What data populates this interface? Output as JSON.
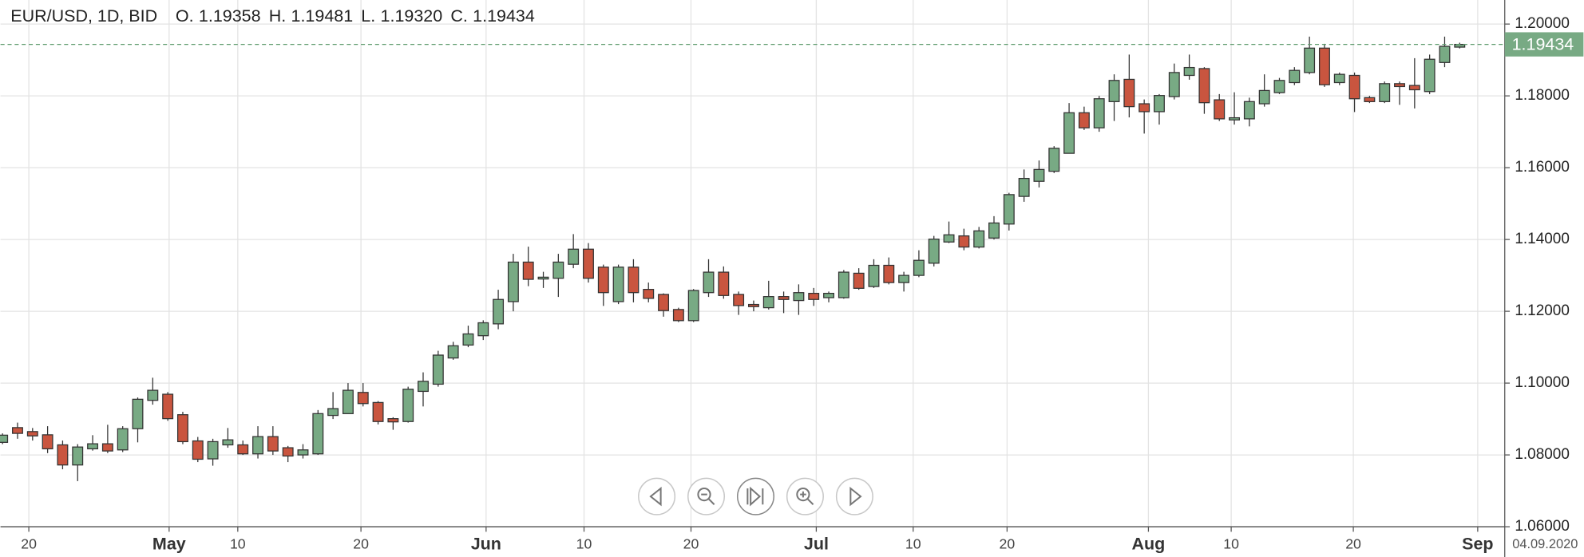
{
  "chart_data": {
    "type": "candlestick",
    "title": "EUR/USD, 1D, BID",
    "header": [
      {
        "label": "O.",
        "text": "1.19358"
      },
      {
        "label": "H.",
        "text": "1.19481"
      },
      {
        "label": "L.",
        "text": "1.19320"
      },
      {
        "label": "C.",
        "text": "1.19434"
      }
    ],
    "open": [
      1.0835,
      1.0876,
      1.0865,
      1.0856,
      1.0828,
      1.0772,
      1.0817,
      1.0831,
      1.0814,
      1.0873,
      1.0952,
      1.0969,
      1.0912,
      1.0839,
      1.0789,
      1.0828,
      1.0828,
      1.0803,
      1.0851,
      1.082,
      1.08,
      1.0803,
      1.091,
      1.0915,
      1.0974,
      1.0946,
      1.0901,
      1.0893,
      1.0977,
      1.0997,
      1.107,
      1.1106,
      1.1132,
      1.1165,
      1.1227,
      1.1337,
      1.129,
      1.1292,
      1.1331,
      1.1373,
      1.1323,
      1.1227,
      1.1323,
      1.1261,
      1.1247,
      1.1205,
      1.1174,
      1.1252,
      1.1309,
      1.1247,
      1.1219,
      1.121,
      1.1241,
      1.123,
      1.125,
      1.1238,
      1.1238,
      1.1306,
      1.1269,
      1.1328,
      1.128,
      1.13,
      1.1334,
      1.1393,
      1.141,
      1.1379,
      1.1404,
      1.1443,
      1.152,
      1.1562,
      1.159,
      1.164,
      1.1753,
      1.1711,
      1.1784,
      1.1846,
      1.1778,
      1.1756,
      1.1798,
      1.1857,
      1.1876,
      1.1789,
      1.1733,
      1.1736,
      1.1778,
      1.1809,
      1.1837,
      1.1865,
      1.1933,
      1.1837,
      1.1857,
      1.1795,
      1.1784,
      1.1834,
      1.1829,
      1.1812,
      1.1893,
      1.19358
    ],
    "high": [
      1.086,
      1.089,
      1.0875,
      1.088,
      1.084,
      1.083,
      1.0855,
      1.0884,
      1.088,
      1.096,
      1.1015,
      1.0975,
      1.092,
      1.085,
      1.0845,
      1.0875,
      1.084,
      1.088,
      1.088,
      1.0825,
      1.083,
      1.0925,
      1.0975,
      1.1,
      1.1,
      1.095,
      1.0905,
      1.099,
      1.103,
      1.109,
      1.1115,
      1.116,
      1.1175,
      1.126,
      1.136,
      1.138,
      1.131,
      1.136,
      1.1415,
      1.139,
      1.133,
      1.133,
      1.1345,
      1.128,
      1.125,
      1.121,
      1.1262,
      1.1345,
      1.1325,
      1.1255,
      1.123,
      1.1285,
      1.1255,
      1.1275,
      1.1265,
      1.1255,
      1.1315,
      1.132,
      1.1345,
      1.135,
      1.131,
      1.137,
      1.141,
      1.145,
      1.143,
      1.1435,
      1.1465,
      1.153,
      1.1595,
      1.162,
      1.166,
      1.178,
      1.177,
      1.18,
      1.186,
      1.1915,
      1.179,
      1.1805,
      1.189,
      1.1915,
      1.188,
      1.1805,
      1.181,
      1.1795,
      1.186,
      1.185,
      1.188,
      1.1965,
      1.1945,
      1.1865,
      1.1865,
      1.18,
      1.184,
      1.184,
      1.1905,
      1.1915,
      1.1965,
      1.19481
    ],
    "low": [
      1.083,
      1.0845,
      1.084,
      1.0805,
      1.076,
      1.0727,
      1.0812,
      1.0805,
      1.0808,
      1.0835,
      1.094,
      1.0895,
      1.083,
      1.078,
      1.077,
      1.082,
      1.08,
      1.079,
      1.08,
      1.078,
      1.079,
      1.08,
      1.09,
      1.0915,
      1.0935,
      1.0885,
      1.087,
      1.089,
      1.0935,
      1.099,
      1.1065,
      1.11,
      1.112,
      1.115,
      1.12,
      1.127,
      1.1265,
      1.124,
      1.132,
      1.128,
      1.1215,
      1.122,
      1.1225,
      1.1225,
      1.1185,
      1.117,
      1.117,
      1.124,
      1.1235,
      1.119,
      1.12,
      1.1205,
      1.1195,
      1.119,
      1.1215,
      1.1225,
      1.1235,
      1.126,
      1.1265,
      1.1275,
      1.1255,
      1.1295,
      1.1325,
      1.139,
      1.137,
      1.1375,
      1.14,
      1.1425,
      1.1505,
      1.1545,
      1.1585,
      1.164,
      1.1705,
      1.17,
      1.173,
      1.174,
      1.1695,
      1.172,
      1.179,
      1.1845,
      1.175,
      1.173,
      1.172,
      1.1715,
      1.177,
      1.1805,
      1.183,
      1.186,
      1.1825,
      1.183,
      1.1755,
      1.178,
      1.178,
      1.1775,
      1.1765,
      1.1805,
      1.188,
      1.1932
    ],
    "close": [
      1.0855,
      1.086,
      1.0853,
      1.0817,
      1.0772,
      1.0822,
      1.0831,
      1.0811,
      1.0873,
      1.0955,
      1.098,
      1.0901,
      1.0837,
      1.0788,
      1.0837,
      1.0842,
      1.0803,
      1.0851,
      1.0811,
      1.0797,
      1.0814,
      1.0915,
      1.0929,
      1.098,
      1.0943,
      1.0893,
      1.0892,
      1.0983,
      1.1005,
      1.1078,
      1.1104,
      1.1137,
      1.1168,
      1.1233,
      1.1337,
      1.1289,
      1.1295,
      1.1337,
      1.1373,
      1.1292,
      1.1252,
      1.1323,
      1.1252,
      1.1236,
      1.1202,
      1.1174,
      1.1258,
      1.1309,
      1.1244,
      1.1216,
      1.1213,
      1.1241,
      1.1233,
      1.1252,
      1.1233,
      1.125,
      1.1309,
      1.1264,
      1.1328,
      1.128,
      1.13,
      1.1342,
      1.1401,
      1.1413,
      1.1379,
      1.1424,
      1.1446,
      1.1525,
      1.157,
      1.1595,
      1.1654,
      1.1753,
      1.1711,
      1.1792,
      1.1843,
      1.177,
      1.1756,
      1.1801,
      1.1865,
      1.1879,
      1.1781,
      1.1736,
      1.1739,
      1.1784,
      1.1815,
      1.1843,
      1.1871,
      1.1933,
      1.1831,
      1.186,
      1.1792,
      1.1784,
      1.1834,
      1.1826,
      1.1817,
      1.1902,
      1.1938,
      1.19434
    ],
    "up_color": "#78aa84",
    "down_color": "#c9553f",
    "ylim": [
      1.06,
      1.2067
    ],
    "yticks": [
      {
        "value": 1.06,
        "label": "1.06000"
      },
      {
        "value": 1.08,
        "label": "1.08000"
      },
      {
        "value": 1.1,
        "label": "1.10000"
      },
      {
        "value": 1.12,
        "label": "1.12000"
      },
      {
        "value": 1.14,
        "label": "1.14000"
      },
      {
        "value": 1.16,
        "label": "1.16000"
      },
      {
        "value": 1.18,
        "label": "1.18000"
      },
      {
        "value": 1.2,
        "label": "1.20000"
      }
    ],
    "xticks": [
      {
        "value": 1.75,
        "label": "20"
      },
      {
        "value": 15.66,
        "label": "10"
      },
      {
        "value": 23.86,
        "label": "20"
      },
      {
        "value": 38.71,
        "label": "10"
      },
      {
        "value": 45.83,
        "label": "20"
      },
      {
        "value": 60.62,
        "label": "10"
      },
      {
        "value": 66.87,
        "label": "20"
      },
      {
        "value": 81.79,
        "label": "10"
      },
      {
        "value": 89.92,
        "label": "20"
      }
    ],
    "xticks_major": [
      {
        "value": 11.09,
        "label": "May"
      },
      {
        "value": 32.19,
        "label": "Jun"
      },
      {
        "value": 54.17,
        "label": "Jul"
      },
      {
        "value": 76.28,
        "label": "Aug"
      },
      {
        "value": 98.2,
        "label": "Sep"
      }
    ],
    "date_label": "04.09.2020",
    "last_price": {
      "value": 1.19434,
      "label": "1.19434"
    },
    "grid": true
  }
}
